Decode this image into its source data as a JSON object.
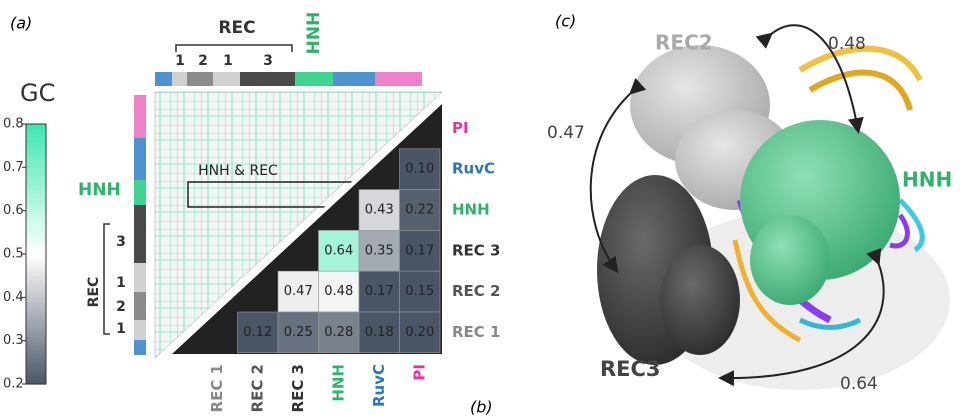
{
  "panel_labels": [
    "(a)",
    "(b)",
    "(c)"
  ],
  "colorbar": {
    "title": "GC",
    "lim": [
      0.2,
      0.8
    ],
    "ticks": [
      0.2,
      0.3,
      0.4,
      0.5,
      0.6,
      0.7,
      0.8
    ]
  },
  "heatmap": {
    "side_hnh": "HNH",
    "side_rec": "REC",
    "side_rec_parts": [
      "3",
      "1",
      "2",
      "1"
    ],
    "top_rec": "REC",
    "top_rec_parts": [
      "1",
      "2",
      "1",
      "3"
    ],
    "top_hnh": "HNH",
    "region_label": "HNH & REC"
  },
  "matrix": {
    "rows": [
      "PI",
      "RuvC",
      "HNH",
      "REC 3",
      "REC 2",
      "REC 1"
    ],
    "columns": [
      "REC 1",
      "REC 2",
      "REC 3",
      "HNH",
      "RuvC",
      "PI"
    ],
    "values": [
      [
        null,
        null,
        null,
        null,
        null,
        null
      ],
      [
        null,
        null,
        null,
        null,
        null,
        0.1
      ],
      [
        null,
        null,
        null,
        null,
        0.43,
        0.22
      ],
      [
        null,
        null,
        null,
        0.64,
        0.35,
        0.17
      ],
      [
        null,
        null,
        0.47,
        0.48,
        0.17,
        0.15
      ],
      [
        null,
        0.12,
        0.25,
        0.28,
        0.18,
        0.2
      ]
    ],
    "value_labels": [
      [
        null,
        null,
        null,
        null,
        null,
        null
      ],
      [
        null,
        null,
        null,
        null,
        null,
        "0.10"
      ],
      [
        null,
        null,
        null,
        null,
        "0.43",
        "0.22"
      ],
      [
        null,
        null,
        null,
        "0.64",
        "0.35",
        "0.17"
      ],
      [
        null,
        null,
        "0.47",
        "0.48",
        "0.17",
        "0.15"
      ],
      [
        null,
        "0.12",
        "0.25",
        "0.28",
        "0.18",
        "0.20"
      ]
    ]
  },
  "structure": {
    "rec2": "REC2",
    "hnh": "HNH",
    "rec3": "REC3",
    "couplings": [
      0.48,
      0.47,
      0.64
    ]
  }
}
